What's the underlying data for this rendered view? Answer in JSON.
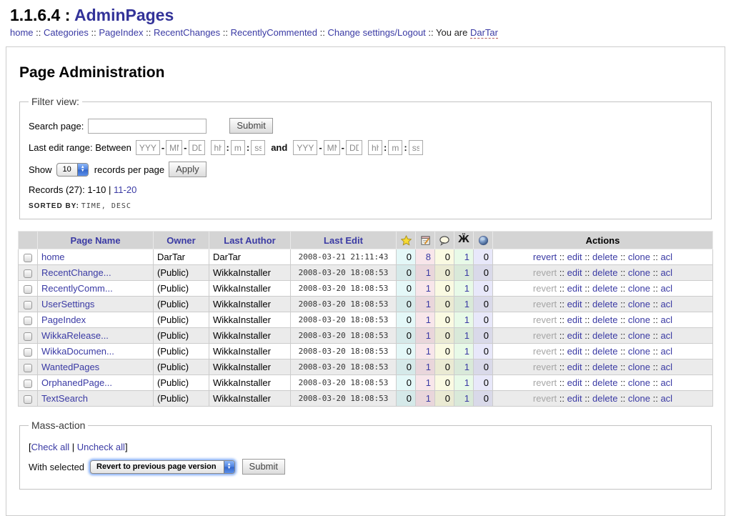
{
  "header": {
    "version": "1.1.6.4",
    "title_separator": ":",
    "app_title": "AdminPages",
    "nav_items": [
      "home",
      "Categories",
      "PageIndex",
      "RecentChanges",
      "RecentlyCommented",
      "Change settings/Logout"
    ],
    "nav_separator": "::",
    "you_are_label": "You are",
    "username": "DarTar"
  },
  "page": {
    "title": "Page Administration"
  },
  "filter": {
    "legend": "Filter view:",
    "search_label": "Search page:",
    "search_value": "",
    "search_submit_label": "Submit",
    "range_label": "Last edit range: Between",
    "and_label": "and",
    "date_parts": {
      "year": "YYYY",
      "month": "MM",
      "day": "DD",
      "hour": "hh",
      "minute": "mm",
      "second": "ss"
    },
    "date_sep": "-",
    "time_sep": ":",
    "show_label": "Show",
    "per_page_value": "10",
    "per_page_suffix_label": "records per page",
    "apply_label": "Apply",
    "records_text": "Records (27): 1-10",
    "records_divider": "|",
    "records_page_link": "11-20",
    "sorted_by_label": "SORTED BY:",
    "sorted_by_value": "TIME, DESC"
  },
  "table": {
    "col_headers": {
      "page": "Page Name",
      "owner": "Owner",
      "author": "Last Author",
      "edit": "Last Edit",
      "actions": "Actions"
    },
    "icon_columns": [
      "star-icon",
      "edit-icon",
      "comment-icon",
      "backlinks-icon",
      "globe-icon"
    ],
    "action_labels": [
      "revert",
      "edit",
      "delete",
      "clone",
      "acl"
    ],
    "action_separator": "::",
    "rows": [
      {
        "page": "home",
        "owner": "DarTar",
        "last_author": "DarTar",
        "last_edit": "2008-03-21 21:11:43",
        "counts": [
          0,
          8,
          0,
          1,
          0
        ],
        "revert_enabled": true
      },
      {
        "page": "RecentChange...",
        "owner": "(Public)",
        "last_author": "WikkaInstaller",
        "last_edit": "2008-03-20 18:08:53",
        "counts": [
          0,
          1,
          0,
          1,
          0
        ],
        "revert_enabled": false
      },
      {
        "page": "RecentlyComm...",
        "owner": "(Public)",
        "last_author": "WikkaInstaller",
        "last_edit": "2008-03-20 18:08:53",
        "counts": [
          0,
          1,
          0,
          1,
          0
        ],
        "revert_enabled": false
      },
      {
        "page": "UserSettings",
        "owner": "(Public)",
        "last_author": "WikkaInstaller",
        "last_edit": "2008-03-20 18:08:53",
        "counts": [
          0,
          1,
          0,
          1,
          0
        ],
        "revert_enabled": false
      },
      {
        "page": "PageIndex",
        "owner": "(Public)",
        "last_author": "WikkaInstaller",
        "last_edit": "2008-03-20 18:08:53",
        "counts": [
          0,
          1,
          0,
          1,
          0
        ],
        "revert_enabled": false
      },
      {
        "page": "WikkaRelease...",
        "owner": "(Public)",
        "last_author": "WikkaInstaller",
        "last_edit": "2008-03-20 18:08:53",
        "counts": [
          0,
          1,
          0,
          1,
          0
        ],
        "revert_enabled": false
      },
      {
        "page": "WikkaDocumen...",
        "owner": "(Public)",
        "last_author": "WikkaInstaller",
        "last_edit": "2008-03-20 18:08:53",
        "counts": [
          0,
          1,
          0,
          1,
          0
        ],
        "revert_enabled": false
      },
      {
        "page": "WantedPages",
        "owner": "(Public)",
        "last_author": "WikkaInstaller",
        "last_edit": "2008-03-20 18:08:53",
        "counts": [
          0,
          1,
          0,
          1,
          0
        ],
        "revert_enabled": false
      },
      {
        "page": "OrphanedPage...",
        "owner": "(Public)",
        "last_author": "WikkaInstaller",
        "last_edit": "2008-03-20 18:08:53",
        "counts": [
          0,
          1,
          0,
          1,
          0
        ],
        "revert_enabled": false
      },
      {
        "page": "TextSearch",
        "owner": "(Public)",
        "last_author": "WikkaInstaller",
        "last_edit": "2008-03-20 18:08:53",
        "counts": [
          0,
          1,
          0,
          1,
          0
        ],
        "revert_enabled": false
      }
    ]
  },
  "mass_action": {
    "legend": "Mass-action",
    "open_bracket": "[",
    "check_all_label": "Check all",
    "divider": "|",
    "uncheck_all_label": "Uncheck all",
    "close_bracket": "]",
    "with_selected_label": "With selected",
    "selected_option": "Revert to previous page version",
    "submit_label": "Submit"
  },
  "colors": {
    "link": "#3a3aa4",
    "app_title": "#333399",
    "header_cell_bg": "#d4d4d4",
    "disabled_action": "#a6a6a6"
  }
}
